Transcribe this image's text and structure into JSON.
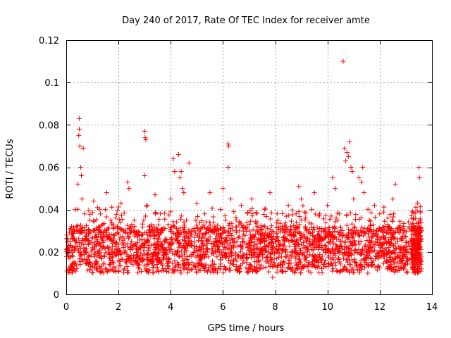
{
  "chart_data": {
    "type": "scatter",
    "title": "Day 240 of 2017, Rate Of TEC Index for receiver amte",
    "xlabel": "GPS time / hours",
    "ylabel": "ROTI / TECUs",
    "xlim": [
      0,
      14
    ],
    "ylim": [
      0,
      0.12
    ],
    "x_ticks": [
      0,
      2,
      4,
      6,
      8,
      10,
      12,
      14
    ],
    "x_tick_labels": [
      "0",
      "2",
      "4",
      "6",
      "8",
      "10",
      "12",
      "14"
    ],
    "y_ticks": [
      0,
      0.02,
      0.04,
      0.06,
      0.08,
      0.1,
      0.12
    ],
    "y_tick_labels": [
      "0",
      "0.02",
      "0.04",
      "0.06",
      "0.08",
      "0.1",
      "0.12"
    ],
    "grid": true,
    "marker": "+",
    "marker_color": "#ff0000",
    "series": [
      {
        "name": "ROTI",
        "points": [
          [
            0.1,
            0.018
          ],
          [
            0.15,
            0.025
          ],
          [
            0.2,
            0.032
          ],
          [
            0.25,
            0.012
          ],
          [
            0.3,
            0.022
          ],
          [
            0.35,
            0.04
          ],
          [
            0.4,
            0.03
          ],
          [
            0.45,
            0.052
          ],
          [
            0.5,
            0.083
          ],
          [
            0.5,
            0.078
          ],
          [
            0.48,
            0.075
          ],
          [
            0.52,
            0.07
          ],
          [
            0.55,
            0.06
          ],
          [
            0.58,
            0.056
          ],
          [
            0.6,
            0.045
          ],
          [
            0.65,
            0.069
          ],
          [
            0.7,
            0.038
          ],
          [
            0.75,
            0.02
          ],
          [
            0.8,
            0.015
          ],
          [
            0.85,
            0.028
          ],
          [
            0.9,
            0.035
          ],
          [
            0.95,
            0.018
          ],
          [
            1.0,
            0.022
          ],
          [
            1.05,
            0.044
          ],
          [
            1.1,
            0.03
          ],
          [
            1.15,
            0.012
          ],
          [
            1.2,
            0.025
          ],
          [
            1.3,
            0.018
          ],
          [
            1.4,
            0.033
          ],
          [
            1.5,
            0.04
          ],
          [
            1.55,
            0.048
          ],
          [
            1.6,
            0.022
          ],
          [
            1.7,
            0.015
          ],
          [
            1.8,
            0.028
          ],
          [
            1.9,
            0.036
          ],
          [
            2.0,
            0.02
          ],
          [
            2.1,
            0.043
          ],
          [
            2.2,
            0.03
          ],
          [
            2.3,
            0.016
          ],
          [
            2.35,
            0.053
          ],
          [
            2.4,
            0.05
          ],
          [
            2.5,
            0.025
          ],
          [
            2.6,
            0.035
          ],
          [
            2.7,
            0.018
          ],
          [
            2.8,
            0.012
          ],
          [
            2.9,
            0.028
          ],
          [
            3.0,
            0.077
          ],
          [
            3.02,
            0.074
          ],
          [
            3.05,
            0.073
          ],
          [
            3.0,
            0.056
          ],
          [
            3.1,
            0.042
          ],
          [
            3.15,
            0.022
          ],
          [
            3.2,
            0.03
          ],
          [
            3.3,
            0.015
          ],
          [
            3.4,
            0.047
          ],
          [
            3.5,
            0.025
          ],
          [
            3.6,
            0.038
          ],
          [
            3.7,
            0.02
          ],
          [
            3.8,
            0.012
          ],
          [
            3.9,
            0.033
          ],
          [
            4.0,
            0.045
          ],
          [
            4.1,
            0.064
          ],
          [
            4.15,
            0.058
          ],
          [
            4.2,
            0.028
          ],
          [
            4.3,
            0.066
          ],
          [
            4.35,
            0.055
          ],
          [
            4.4,
            0.058
          ],
          [
            4.45,
            0.05
          ],
          [
            4.5,
            0.048
          ],
          [
            4.55,
            0.022
          ],
          [
            4.6,
            0.035
          ],
          [
            4.7,
            0.062
          ],
          [
            4.8,
            0.018
          ],
          [
            4.9,
            0.03
          ],
          [
            5.0,
            0.043
          ],
          [
            5.1,
            0.015
          ],
          [
            5.2,
            0.025
          ],
          [
            5.3,
            0.038
          ],
          [
            5.4,
            0.02
          ],
          [
            5.5,
            0.048
          ],
          [
            5.6,
            0.03
          ],
          [
            5.7,
            0.012
          ],
          [
            5.8,
            0.027
          ],
          [
            5.9,
            0.04
          ],
          [
            6.0,
            0.05
          ],
          [
            6.1,
            0.035
          ],
          [
            6.2,
            0.071
          ],
          [
            6.22,
            0.07
          ],
          [
            6.2,
            0.06
          ],
          [
            6.3,
            0.045
          ],
          [
            6.4,
            0.022
          ],
          [
            6.5,
            0.03
          ],
          [
            6.6,
            0.018
          ],
          [
            6.7,
            0.042
          ],
          [
            6.8,
            0.025
          ],
          [
            6.9,
            0.015
          ],
          [
            7.0,
            0.033
          ],
          [
            7.1,
            0.045
          ],
          [
            7.2,
            0.02
          ],
          [
            7.3,
            0.038
          ],
          [
            7.4,
            0.012
          ],
          [
            7.5,
            0.028
          ],
          [
            7.6,
            0.04
          ],
          [
            7.7,
            0.018
          ],
          [
            7.8,
            0.048
          ],
          [
            7.9,
            0.008
          ],
          [
            8.0,
            0.025
          ],
          [
            8.1,
            0.035
          ],
          [
            8.2,
            0.015
          ],
          [
            8.3,
            0.03
          ],
          [
            8.4,
            0.02
          ],
          [
            8.5,
            0.042
          ],
          [
            8.6,
            0.012
          ],
          [
            8.7,
            0.028
          ],
          [
            8.8,
            0.038
          ],
          [
            8.9,
            0.051
          ],
          [
            9.0,
            0.045
          ],
          [
            9.1,
            0.022
          ],
          [
            9.2,
            0.03
          ],
          [
            9.3,
            0.015
          ],
          [
            9.4,
            0.04
          ],
          [
            9.5,
            0.048
          ],
          [
            9.6,
            0.025
          ],
          [
            9.7,
            0.038
          ],
          [
            9.8,
            0.018
          ],
          [
            9.9,
            0.03
          ],
          [
            10.0,
            0.042
          ],
          [
            10.1,
            0.02
          ],
          [
            10.2,
            0.055
          ],
          [
            10.3,
            0.05
          ],
          [
            10.4,
            0.035
          ],
          [
            10.5,
            0.025
          ],
          [
            10.6,
            0.11
          ],
          [
            10.65,
            0.069
          ],
          [
            10.7,
            0.063
          ],
          [
            10.75,
            0.067
          ],
          [
            10.8,
            0.065
          ],
          [
            10.85,
            0.072
          ],
          [
            10.9,
            0.06
          ],
          [
            10.95,
            0.058
          ],
          [
            11.0,
            0.045
          ],
          [
            11.1,
            0.03
          ],
          [
            11.2,
            0.055
          ],
          [
            11.3,
            0.053
          ],
          [
            11.35,
            0.06
          ],
          [
            11.4,
            0.048
          ],
          [
            11.5,
            0.02
          ],
          [
            11.6,
            0.035
          ],
          [
            11.7,
            0.015
          ],
          [
            11.8,
            0.042
          ],
          [
            11.9,
            0.028
          ],
          [
            12.0,
            0.038
          ],
          [
            12.1,
            0.02
          ],
          [
            12.2,
            0.032
          ],
          [
            12.3,
            0.012
          ],
          [
            12.4,
            0.025
          ],
          [
            12.5,
            0.045
          ],
          [
            12.6,
            0.052
          ],
          [
            12.7,
            0.018
          ],
          [
            12.8,
            0.03
          ],
          [
            12.9,
            0.022
          ],
          [
            13.2,
            0.025
          ],
          [
            13.3,
            0.018
          ],
          [
            13.35,
            0.03
          ],
          [
            13.4,
            0.015
          ],
          [
            13.45,
            0.01
          ],
          [
            13.5,
            0.06
          ],
          [
            13.52,
            0.055
          ],
          [
            13.5,
            0.022
          ],
          [
            13.55,
            0.035
          ],
          [
            13.6,
            0.012
          ]
        ]
      }
    ]
  }
}
